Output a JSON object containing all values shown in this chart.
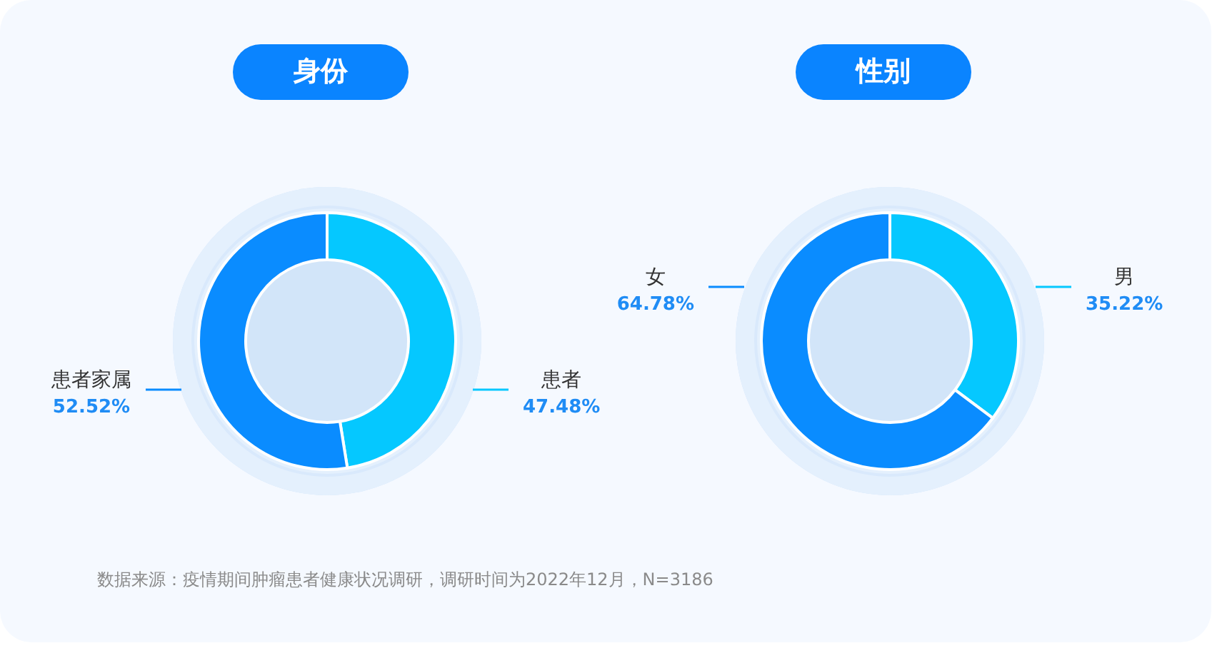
{
  "chart_data": [
    {
      "type": "donut",
      "title": "身份",
      "categories": [
        "患者",
        "患者家属"
      ],
      "values": [
        47.48,
        52.52
      ],
      "colors": [
        "#05c8ff",
        "#0a8cff"
      ],
      "value_labels": [
        "47.48%",
        "52.52%"
      ],
      "annotations": [
        "数据来源：疫情期间肿瘤患者健康状况调研，调研时间为2022年12月，N=3186"
      ]
    },
    {
      "type": "donut",
      "title": "性别",
      "categories": [
        "男",
        "女"
      ],
      "values": [
        35.22,
        64.78
      ],
      "colors": [
        "#05c8ff",
        "#0a8cff"
      ],
      "value_labels": [
        "35.22%",
        "64.78%"
      ]
    }
  ]
}
